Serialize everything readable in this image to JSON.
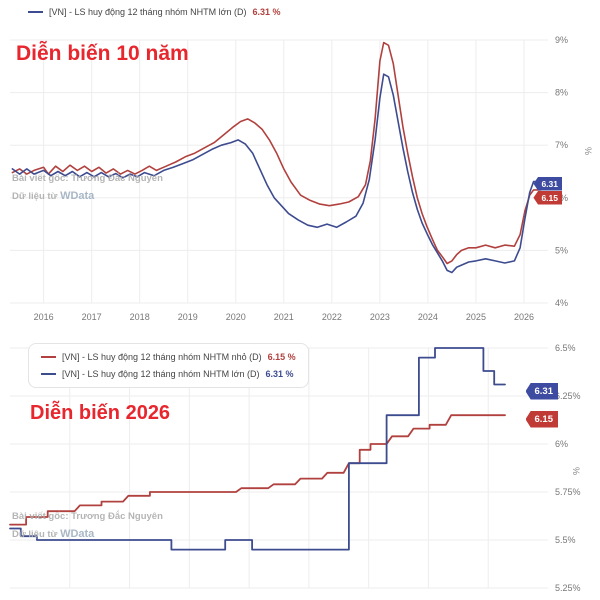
{
  "colors": {
    "red": "#b0413e",
    "blue": "#3d4b8f",
    "annotation": "#e8262d",
    "badge_blue": "#3d4ba0",
    "badge_red": "#c03a36",
    "grid": "#ededed",
    "axis_text": "#777777",
    "watermark": "#adadad"
  },
  "watermark": {
    "line1": "Bài viết gốc: Trương Đắc Nguyên",
    "line2_prefix": "Dữ liệu từ ",
    "brand": "WData"
  },
  "top_chart": {
    "annotation": "Diễn biến 10 năm",
    "unit": "%",
    "legend": [
      {
        "label": "[VN] - LS huy động 12 tháng nhóm NHTM lớn (D)",
        "value": "6.31 %"
      }
    ],
    "badges": [
      {
        "text": "6.31",
        "color": "blue"
      },
      {
        "text": "6.15",
        "color": "red"
      }
    ]
  },
  "bottom_chart": {
    "annotation": "Diễn biến 2026",
    "unit": "%",
    "legend": [
      {
        "label": "[VN] - LS huy động 12 tháng nhóm NHTM nhỏ (D)",
        "value": "6.15 %",
        "color": "red"
      },
      {
        "label": "[VN] - LS huy động 12 tháng nhóm NHTM lớn (D)",
        "value": "6.31 %",
        "color": "blue"
      }
    ],
    "badges": [
      {
        "text": "6.31",
        "color": "blue"
      },
      {
        "text": "6.15",
        "color": "red"
      }
    ]
  },
  "chart_data": [
    {
      "type": "line",
      "title": "Diễn biến 10 năm",
      "ylabel": "%",
      "ylim": [
        4,
        9
      ],
      "yticks": [
        {
          "v": 4,
          "label": "4%"
        },
        {
          "v": 5,
          "label": "5%"
        },
        {
          "v": 6,
          "label": "6%"
        },
        {
          "v": 7,
          "label": "7%"
        },
        {
          "v": 8,
          "label": "8%"
        },
        {
          "v": 9,
          "label": "9%"
        }
      ],
      "xlim": [
        2015.3,
        2026.5
      ],
      "xticks": [
        {
          "v": 2016,
          "label": "2016"
        },
        {
          "v": 2017,
          "label": "2017"
        },
        {
          "v": 2018,
          "label": "2018"
        },
        {
          "v": 2019,
          "label": "2019"
        },
        {
          "v": 2020,
          "label": "2020"
        },
        {
          "v": 2021,
          "label": "2021"
        },
        {
          "v": 2022,
          "label": "2022"
        },
        {
          "v": 2023,
          "label": "2023"
        },
        {
          "v": 2024,
          "label": "2024"
        },
        {
          "v": 2025,
          "label": "2025"
        },
        {
          "v": 2026,
          "label": "2026"
        }
      ],
      "series": [
        {
          "name": "[VN] - LS huy động 12 tháng nhóm NHTM nhỏ (D)",
          "color_key": "red",
          "last": 6.15,
          "points": [
            [
              2015.35,
              6.48
            ],
            [
              2015.5,
              6.55
            ],
            [
              2015.65,
              6.45
            ],
            [
              2015.8,
              6.52
            ],
            [
              2016.0,
              6.58
            ],
            [
              2016.1,
              6.45
            ],
            [
              2016.25,
              6.6
            ],
            [
              2016.4,
              6.5
            ],
            [
              2016.55,
              6.62
            ],
            [
              2016.7,
              6.52
            ],
            [
              2016.85,
              6.6
            ],
            [
              2017.0,
              6.5
            ],
            [
              2017.15,
              6.58
            ],
            [
              2017.3,
              6.47
            ],
            [
              2017.45,
              6.55
            ],
            [
              2017.6,
              6.45
            ],
            [
              2017.75,
              6.52
            ],
            [
              2017.9,
              6.45
            ],
            [
              2018.05,
              6.52
            ],
            [
              2018.2,
              6.6
            ],
            [
              2018.35,
              6.52
            ],
            [
              2018.55,
              6.6
            ],
            [
              2018.75,
              6.68
            ],
            [
              2018.95,
              6.78
            ],
            [
              2019.15,
              6.85
            ],
            [
              2019.35,
              6.95
            ],
            [
              2019.55,
              7.05
            ],
            [
              2019.75,
              7.2
            ],
            [
              2019.95,
              7.35
            ],
            [
              2020.1,
              7.45
            ],
            [
              2020.25,
              7.5
            ],
            [
              2020.4,
              7.42
            ],
            [
              2020.55,
              7.3
            ],
            [
              2020.7,
              7.1
            ],
            [
              2020.85,
              6.85
            ],
            [
              2021.0,
              6.55
            ],
            [
              2021.15,
              6.3
            ],
            [
              2021.35,
              6.05
            ],
            [
              2021.55,
              5.95
            ],
            [
              2021.75,
              5.88
            ],
            [
              2021.95,
              5.85
            ],
            [
              2022.15,
              5.88
            ],
            [
              2022.35,
              5.92
            ],
            [
              2022.55,
              6.02
            ],
            [
              2022.7,
              6.25
            ],
            [
              2022.8,
              6.7
            ],
            [
              2022.9,
              7.5
            ],
            [
              2023.0,
              8.6
            ],
            [
              2023.08,
              8.95
            ],
            [
              2023.18,
              8.9
            ],
            [
              2023.28,
              8.55
            ],
            [
              2023.38,
              7.95
            ],
            [
              2023.48,
              7.35
            ],
            [
              2023.58,
              6.85
            ],
            [
              2023.68,
              6.4
            ],
            [
              2023.78,
              6.0
            ],
            [
              2023.88,
              5.7
            ],
            [
              2023.98,
              5.45
            ],
            [
              2024.1,
              5.2
            ],
            [
              2024.2,
              5.0
            ],
            [
              2024.3,
              4.88
            ],
            [
              2024.4,
              4.75
            ],
            [
              2024.5,
              4.8
            ],
            [
              2024.6,
              4.92
            ],
            [
              2024.7,
              5.0
            ],
            [
              2024.85,
              5.05
            ],
            [
              2025.0,
              5.05
            ],
            [
              2025.2,
              5.1
            ],
            [
              2025.4,
              5.05
            ],
            [
              2025.6,
              5.1
            ],
            [
              2025.8,
              5.08
            ],
            [
              2025.92,
              5.3
            ],
            [
              2026.02,
              5.75
            ],
            [
              2026.12,
              6.05
            ],
            [
              2026.2,
              6.15
            ],
            [
              2026.35,
              6.15
            ]
          ]
        },
        {
          "name": "[VN] - LS huy động 12 tháng nhóm NHTM lớn (D)",
          "color_key": "blue",
          "last": 6.31,
          "points": [
            [
              2015.35,
              6.55
            ],
            [
              2015.5,
              6.45
            ],
            [
              2015.65,
              6.55
            ],
            [
              2015.8,
              6.45
            ],
            [
              2016.0,
              6.52
            ],
            [
              2016.15,
              6.42
            ],
            [
              2016.3,
              6.5
            ],
            [
              2016.45,
              6.42
            ],
            [
              2016.6,
              6.5
            ],
            [
              2016.75,
              6.4
            ],
            [
              2016.9,
              6.48
            ],
            [
              2017.05,
              6.4
            ],
            [
              2017.2,
              6.48
            ],
            [
              2017.35,
              6.4
            ],
            [
              2017.5,
              6.46
            ],
            [
              2017.65,
              6.38
            ],
            [
              2017.8,
              6.45
            ],
            [
              2017.95,
              6.4
            ],
            [
              2018.1,
              6.48
            ],
            [
              2018.3,
              6.42
            ],
            [
              2018.5,
              6.52
            ],
            [
              2018.7,
              6.58
            ],
            [
              2018.9,
              6.65
            ],
            [
              2019.1,
              6.72
            ],
            [
              2019.3,
              6.82
            ],
            [
              2019.5,
              6.92
            ],
            [
              2019.7,
              7.0
            ],
            [
              2019.9,
              7.05
            ],
            [
              2020.05,
              7.1
            ],
            [
              2020.2,
              7.02
            ],
            [
              2020.35,
              6.85
            ],
            [
              2020.5,
              6.55
            ],
            [
              2020.65,
              6.25
            ],
            [
              2020.8,
              6.0
            ],
            [
              2020.95,
              5.85
            ],
            [
              2021.1,
              5.7
            ],
            [
              2021.3,
              5.58
            ],
            [
              2021.5,
              5.48
            ],
            [
              2021.7,
              5.44
            ],
            [
              2021.9,
              5.5
            ],
            [
              2022.1,
              5.44
            ],
            [
              2022.3,
              5.54
            ],
            [
              2022.5,
              5.65
            ],
            [
              2022.65,
              5.9
            ],
            [
              2022.78,
              6.35
            ],
            [
              2022.9,
              7.1
            ],
            [
              2023.0,
              7.9
            ],
            [
              2023.08,
              8.35
            ],
            [
              2023.18,
              8.3
            ],
            [
              2023.28,
              7.95
            ],
            [
              2023.38,
              7.45
            ],
            [
              2023.48,
              6.95
            ],
            [
              2023.58,
              6.5
            ],
            [
              2023.68,
              6.1
            ],
            [
              2023.78,
              5.78
            ],
            [
              2023.88,
              5.52
            ],
            [
              2023.98,
              5.32
            ],
            [
              2024.1,
              5.1
            ],
            [
              2024.2,
              4.95
            ],
            [
              2024.3,
              4.8
            ],
            [
              2024.4,
              4.62
            ],
            [
              2024.5,
              4.58
            ],
            [
              2024.6,
              4.68
            ],
            [
              2024.7,
              4.72
            ],
            [
              2024.85,
              4.78
            ],
            [
              2025.0,
              4.8
            ],
            [
              2025.2,
              4.84
            ],
            [
              2025.4,
              4.8
            ],
            [
              2025.6,
              4.76
            ],
            [
              2025.8,
              4.8
            ],
            [
              2025.92,
              5.05
            ],
            [
              2026.02,
              5.6
            ],
            [
              2026.12,
              6.1
            ],
            [
              2026.2,
              6.31
            ],
            [
              2026.35,
              6.31
            ]
          ]
        }
      ]
    },
    {
      "type": "line",
      "title": "Diễn biến 2026",
      "ylabel": "%",
      "ylim": [
        5.25,
        6.5
      ],
      "yticks": [
        {
          "v": 5.25,
          "label": "5.25%"
        },
        {
          "v": 5.5,
          "label": "5.5%"
        },
        {
          "v": 5.75,
          "label": "5.75%"
        },
        {
          "v": 6,
          "label": "6%"
        },
        {
          "v": 6.25,
          "label": "6.25%"
        },
        {
          "v": 6.5,
          "label": "6.5%"
        }
      ],
      "xlim": [
        0,
        100
      ],
      "xticks": [],
      "series": [
        {
          "name": "[VN] - LS huy động 12 tháng nhóm NHTM nhỏ (D)",
          "color_key": "red",
          "last": 6.15,
          "points": [
            [
              0,
              5.58
            ],
            [
              3,
              5.58
            ],
            [
              3,
              5.62
            ],
            [
              7,
              5.62
            ],
            [
              7,
              5.65
            ],
            [
              12,
              5.65
            ],
            [
              13,
              5.68
            ],
            [
              17,
              5.68
            ],
            [
              17,
              5.7
            ],
            [
              21,
              5.7
            ],
            [
              22,
              5.73
            ],
            [
              26,
              5.73
            ],
            [
              26,
              5.75
            ],
            [
              42,
              5.75
            ],
            [
              43,
              5.77
            ],
            [
              48,
              5.77
            ],
            [
              49,
              5.79
            ],
            [
              53,
              5.79
            ],
            [
              54,
              5.82
            ],
            [
              58,
              5.82
            ],
            [
              59,
              5.85
            ],
            [
              62,
              5.85
            ],
            [
              63,
              5.9
            ],
            [
              65,
              5.9
            ],
            [
              65,
              5.97
            ],
            [
              67,
              5.97
            ],
            [
              67,
              6.0
            ],
            [
              70,
              6.0
            ],
            [
              71,
              6.04
            ],
            [
              74,
              6.04
            ],
            [
              75,
              6.08
            ],
            [
              78,
              6.08
            ],
            [
              78,
              6.1
            ],
            [
              81,
              6.1
            ],
            [
              82,
              6.15
            ],
            [
              92,
              6.15
            ]
          ]
        },
        {
          "name": "[VN] - LS huy động 12 tháng nhóm NHTM lớn (D)",
          "color_key": "blue",
          "last": 6.31,
          "points": [
            [
              0,
              5.56
            ],
            [
              2,
              5.56
            ],
            [
              2,
              5.52
            ],
            [
              5,
              5.52
            ],
            [
              5,
              5.5
            ],
            [
              30,
              5.5
            ],
            [
              30,
              5.45
            ],
            [
              40,
              5.45
            ],
            [
              40,
              5.5
            ],
            [
              45,
              5.5
            ],
            [
              45,
              5.45
            ],
            [
              63,
              5.45
            ],
            [
              63,
              5.9
            ],
            [
              70,
              5.9
            ],
            [
              70,
              6.15
            ],
            [
              76,
              6.15
            ],
            [
              76,
              6.45
            ],
            [
              79,
              6.45
            ],
            [
              79,
              6.5
            ],
            [
              88,
              6.5
            ],
            [
              88,
              6.38
            ],
            [
              90,
              6.38
            ],
            [
              90,
              6.31
            ],
            [
              92,
              6.31
            ]
          ]
        }
      ]
    }
  ]
}
